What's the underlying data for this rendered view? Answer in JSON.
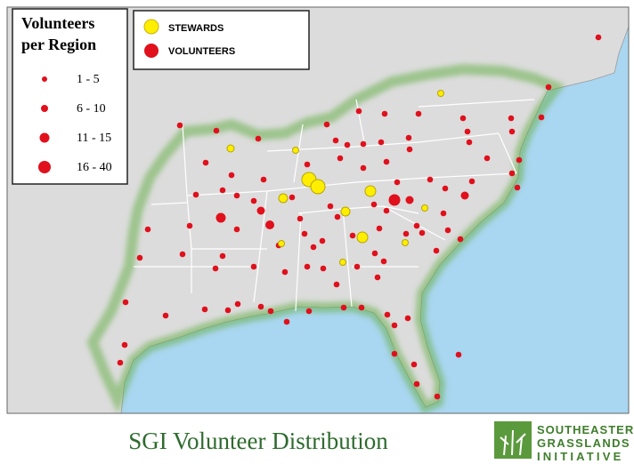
{
  "legend": {
    "title_lines": [
      "Volunteers",
      "per Region"
    ],
    "sizes": [
      "1 - 5",
      "6 - 10",
      "11 - 15",
      "16 - 40"
    ],
    "types": [
      "STEWARDS",
      "VOLUNTEERS"
    ]
  },
  "title": "SGI Volunteer Distribution",
  "logo": {
    "lines": [
      "SOUTHEASTERN",
      "GRASSLANDS",
      "INITIATIVE"
    ]
  }
}
